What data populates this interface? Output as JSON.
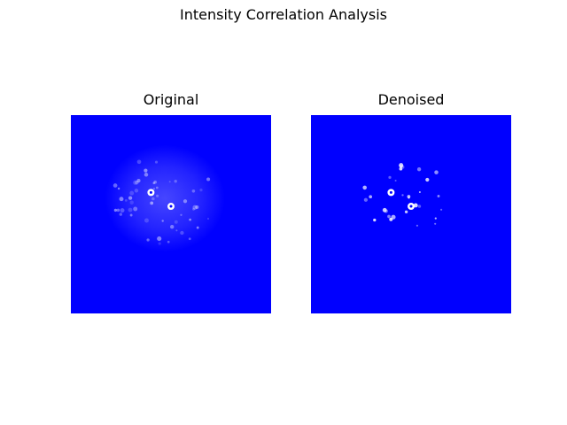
{
  "figure": {
    "title": "Intensity Correlation Analysis"
  },
  "colors": {
    "background": "#0000ff",
    "glow": "#c8c8ff",
    "hotspot": "#ffffff",
    "hotspot_core": "#0000ff"
  },
  "chart_data": [
    {
      "type": "heatmap",
      "title": "Original",
      "axes": "off",
      "hotspots": [
        {
          "x": 0.4,
          "y": 0.39
        },
        {
          "x": 0.5,
          "y": 0.46
        }
      ],
      "glow": {
        "cx": 0.47,
        "cy": 0.42,
        "rx": 0.3,
        "ry": 0.27,
        "intensity": 0.35
      },
      "speckle_count": 55,
      "speckle_spread": 0.26
    },
    {
      "type": "heatmap",
      "title": "Denoised",
      "axes": "off",
      "hotspots": [
        {
          "x": 0.4,
          "y": 0.39
        },
        {
          "x": 0.5,
          "y": 0.46
        }
      ],
      "glow": {
        "cx": 0.47,
        "cy": 0.42,
        "rx": 0.2,
        "ry": 0.18,
        "intensity": 0.0
      },
      "speckle_count": 30,
      "speckle_spread": 0.22
    }
  ]
}
